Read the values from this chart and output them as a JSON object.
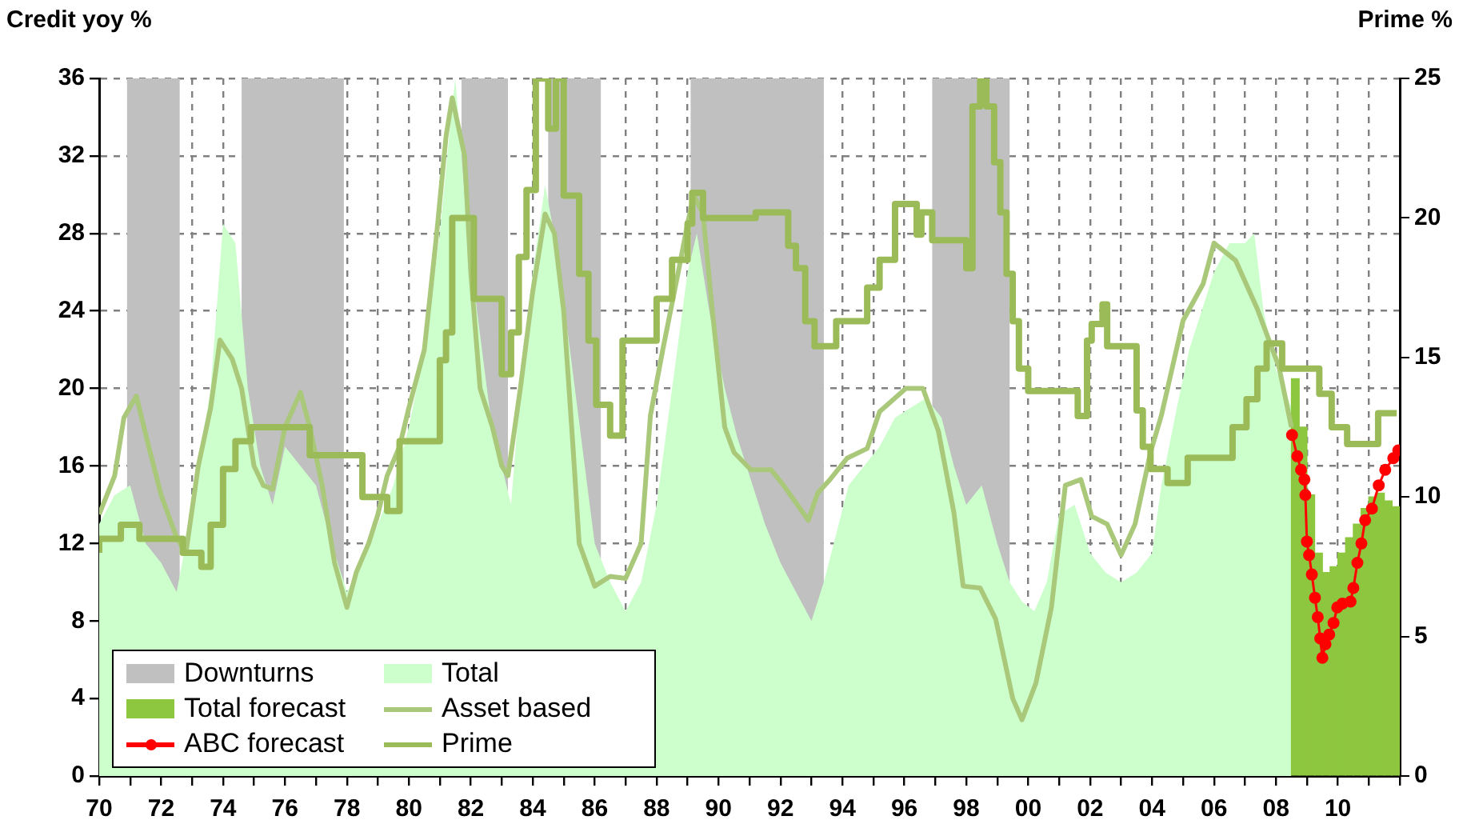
{
  "chart_data": {
    "type": "area",
    "ylabel": "Credit yoy %",
    "y2label": "Prime %",
    "xlim": [
      1970,
      2012
    ],
    "xticks": [
      {
        "value": 1970,
        "label": "70"
      },
      {
        "value": 1971,
        "label": null
      },
      {
        "value": 1972,
        "label": "72"
      },
      {
        "value": 1973,
        "label": null
      },
      {
        "value": 1974,
        "label": "74"
      },
      {
        "value": 1975,
        "label": null
      },
      {
        "value": 1976,
        "label": "76"
      },
      {
        "value": 1977,
        "label": null
      },
      {
        "value": 1978,
        "label": "78"
      },
      {
        "value": 1979,
        "label": null
      },
      {
        "value": 1980,
        "label": "80"
      },
      {
        "value": 1981,
        "label": null
      },
      {
        "value": 1982,
        "label": "82"
      },
      {
        "value": 1983,
        "label": null
      },
      {
        "value": 1984,
        "label": "84"
      },
      {
        "value": 1985,
        "label": null
      },
      {
        "value": 1986,
        "label": "86"
      },
      {
        "value": 1987,
        "label": null
      },
      {
        "value": 1988,
        "label": "88"
      },
      {
        "value": 1989,
        "label": null
      },
      {
        "value": 1990,
        "label": "90"
      },
      {
        "value": 1991,
        "label": null
      },
      {
        "value": 1992,
        "label": "92"
      },
      {
        "value": 1993,
        "label": null
      },
      {
        "value": 1994,
        "label": "94"
      },
      {
        "value": 1995,
        "label": null
      },
      {
        "value": 1996,
        "label": "96"
      },
      {
        "value": 1997,
        "label": null
      },
      {
        "value": 1998,
        "label": "98"
      },
      {
        "value": 1999,
        "label": null
      },
      {
        "value": 2000,
        "label": "00"
      },
      {
        "value": 2001,
        "label": null
      },
      {
        "value": 2002,
        "label": "02"
      },
      {
        "value": 2003,
        "label": null
      },
      {
        "value": 2004,
        "label": "04"
      },
      {
        "value": 2005,
        "label": null
      },
      {
        "value": 2006,
        "label": "06"
      },
      {
        "value": 2007,
        "label": null
      },
      {
        "value": 2008,
        "label": "08"
      },
      {
        "value": 2009,
        "label": null
      },
      {
        "value": 2010,
        "label": "10"
      },
      {
        "value": 2011,
        "label": null
      },
      {
        "value": 2012,
        "label": null
      }
    ],
    "ylim": [
      0,
      36
    ],
    "yticks": [
      0,
      4,
      8,
      12,
      16,
      20,
      24,
      28,
      32,
      36
    ],
    "y2lim": [
      0,
      25
    ],
    "y2ticks": [
      0,
      5,
      10,
      15,
      20,
      25
    ],
    "grid": true,
    "legend": "bottom left",
    "bands": [
      {
        "axis": "x",
        "from": 1970.9,
        "to": 1972.6,
        "label": "Downturns",
        "color": "#c0c0c0"
      },
      {
        "axis": "x",
        "from": 1974.6,
        "to": 1977.9,
        "color": "#c0c0c0"
      },
      {
        "axis": "x",
        "from": 1981.7,
        "to": 1983.2,
        "color": "#c0c0c0"
      },
      {
        "axis": "x",
        "from": 1984.5,
        "to": 1986.2,
        "color": "#c0c0c0"
      },
      {
        "axis": "x",
        "from": 1989.1,
        "to": 1993.4,
        "color": "#c0c0c0"
      },
      {
        "axis": "x",
        "from": 1996.9,
        "to": 1999.4,
        "color": "#c0c0c0"
      }
    ],
    "series": [
      {
        "name": "Total",
        "color": "#ccffcc",
        "x": [
          1970,
          1970.5,
          1971,
          1971.5,
          1972,
          1972.5,
          1972.8,
          1973.2,
          1973.6,
          1974,
          1974.4,
          1974.8,
          1975.2,
          1975.6,
          1976,
          1976.5,
          1977,
          1977.5,
          1978,
          1978.5,
          1979,
          1979.5,
          1980,
          1980.5,
          1981,
          1981.3,
          1981.5,
          1981.8,
          1982.2,
          1982.6,
          1983,
          1983.3,
          1983.6,
          1984,
          1984.4,
          1984.8,
          1985.2,
          1985.6,
          1986,
          1986.5,
          1987,
          1987.5,
          1988,
          1988.5,
          1989,
          1989.3,
          1989.7,
          1990.2,
          1990.6,
          1991,
          1991.5,
          1992,
          1992.5,
          1993,
          1993.4,
          1993.8,
          1994.2,
          1994.7,
          1995.2,
          1995.7,
          1996.2,
          1996.7,
          1997.2,
          1997.6,
          1998,
          1998.5,
          1999,
          1999.4,
          1999.8,
          2000.2,
          2000.6,
          2001,
          2001.5,
          2002,
          2002.5,
          2003,
          2003.5,
          2004,
          2004.3,
          2004.8,
          2005.2,
          2005.6,
          2006,
          2006.5,
          2007,
          2007.3,
          2007.6,
          2008,
          2008.5
        ],
        "values": [
          13,
          14.5,
          15,
          12,
          11,
          9.5,
          12,
          16,
          20,
          28.5,
          27.5,
          20,
          16,
          14,
          17,
          16,
          15,
          12,
          9.5,
          11,
          13,
          15,
          18,
          22,
          28,
          33,
          36,
          30,
          24,
          19,
          16,
          14,
          20,
          26,
          30.5,
          27,
          22,
          17,
          12,
          10,
          8.5,
          10,
          14,
          20,
          26,
          28,
          24,
          20,
          17.5,
          15.5,
          13,
          11,
          9.5,
          8,
          10,
          12.5,
          15,
          16,
          17,
          18.5,
          19,
          19.5,
          18.5,
          16,
          14,
          15,
          12,
          10,
          9,
          8.5,
          10,
          13.5,
          14,
          11.5,
          10.5,
          10,
          10.5,
          11.5,
          15,
          19,
          22,
          24,
          26,
          27.5,
          27.5,
          28,
          24,
          21,
          19
        ]
      },
      {
        "name": "Total forecast",
        "type": "bar",
        "color": "#8dc63f",
        "x": [
          2008.625,
          2008.875,
          2009.125,
          2009.375,
          2009.625,
          2009.875,
          2010.125,
          2010.375,
          2010.625,
          2010.875,
          2011.125,
          2011.375,
          2011.625,
          2011.875
        ],
        "values": [
          20.5,
          18,
          14.5,
          11.5,
          10.5,
          10.8,
          11.5,
          12.3,
          13,
          13.8,
          14.4,
          14.6,
          14.2,
          13.9
        ]
      },
      {
        "name": "Asset based",
        "type": "line",
        "color": "#aac87a",
        "x": [
          1970,
          1970.5,
          1970.8,
          1971.2,
          1971.6,
          1972,
          1972.5,
          1972.8,
          1973.2,
          1973.6,
          1973.9,
          1974.3,
          1974.6,
          1975,
          1975.3,
          1975.6,
          1976,
          1976.5,
          1976.8,
          1977.2,
          1977.6,
          1978,
          1978.3,
          1978.7,
          1979,
          1979.3,
          1979.7,
          1980,
          1980.5,
          1980.9,
          1981.2,
          1981.4,
          1981.8,
          1982,
          1982.3,
          1982.7,
          1983,
          1983.2,
          1983.6,
          1984,
          1984.4,
          1984.7,
          1985,
          1985.3,
          1985.5,
          1986,
          1986.5,
          1987,
          1987.5,
          1987.8,
          1988.2,
          1988.7,
          1989,
          1989.2,
          1989.5,
          1989.8,
          1990.2,
          1990.5,
          1991.05,
          1991.7,
          1992.1,
          1992.9,
          1993.2,
          1993.6,
          1994.15,
          1994.8,
          1995.2,
          1996.05,
          1996.6,
          1997.1,
          1997.6,
          1997.9,
          1998.45,
          1998.95,
          1999.5,
          1999.8,
          2000.25,
          2000.75,
          2001.2,
          2001.7,
          2002.05,
          2002.55,
          2003,
          2003.45,
          2003.95,
          2004.3,
          2005,
          2005.65,
          2006,
          2006.7,
          2007.4,
          2008.1,
          2008.5
        ],
        "values": [
          13.5,
          15.5,
          18.5,
          19.6,
          17,
          14.5,
          12.3,
          11.5,
          16,
          19,
          22.5,
          21.5,
          20,
          16,
          15,
          14.8,
          18,
          19.8,
          18,
          15,
          11,
          8.7,
          10.5,
          12,
          13.5,
          15.5,
          17,
          19,
          22,
          28,
          33,
          35,
          32,
          26,
          20,
          18,
          16,
          15.5,
          20,
          25,
          29,
          28,
          24,
          17,
          12,
          9.8,
          10.3,
          10.2,
          12,
          18.6,
          22,
          26,
          28.5,
          30,
          29,
          24,
          18,
          16.7,
          15.8,
          15.8,
          15,
          13.2,
          14.6,
          15.3,
          16.4,
          16.9,
          18.8,
          20,
          20,
          17.8,
          13.6,
          9.8,
          9.7,
          8.1,
          4,
          2.9,
          4.8,
          8.7,
          15,
          15.3,
          13.4,
          13,
          11.4,
          13,
          16.7,
          18.6,
          23.5,
          25.4,
          27.5,
          26.6,
          24.1,
          21.1,
          18
        ]
      },
      {
        "name": "ABC forecast",
        "type": "line",
        "color": "#ff0000",
        "marker": "circle",
        "x": [
          2008.52,
          2008.69,
          2008.81,
          2008.92,
          2008.95,
          2009,
          2009.07,
          2009.16,
          2009.26,
          2009.35,
          2009.43,
          2009.5,
          2009.6,
          2009.72,
          2009.86,
          2009.98,
          2010.15,
          2010.41,
          2010.5,
          2010.63,
          2010.76,
          2010.88,
          2011.1,
          2011.32,
          2011.53,
          2011.79,
          2011.95
        ],
        "values": [
          17.6,
          16.5,
          15.8,
          15.3,
          14.5,
          12.1,
          11.4,
          10.4,
          9.2,
          8.2,
          7.1,
          6.1,
          6.8,
          7.3,
          7.9,
          8.7,
          8.9,
          9,
          9.7,
          11,
          12,
          13.2,
          13.8,
          15,
          15.8,
          16.4,
          16.8
        ]
      },
      {
        "name": "Prime",
        "type": "step",
        "axis": "y2",
        "color": "#9bbb59",
        "x": [
          1970,
          1970.7,
          1971.3,
          1972.7,
          1973.3,
          1973.6,
          1974,
          1974.4,
          1974.9,
          1976.8,
          1978.5,
          1979.3,
          1979.7,
          1981,
          1981.2,
          1981.4,
          1982.1,
          1983,
          1983.3,
          1983.55,
          1983.8,
          1984.1,
          1984.5,
          1984.75,
          1985,
          1985.5,
          1985.8,
          1986.05,
          1986.5,
          1986.9,
          1988,
          1988.5,
          1989,
          1989.15,
          1989.5,
          1991.2,
          1992.25,
          1992.5,
          1992.8,
          1993.1,
          1993.8,
          1994.8,
          1995.2,
          1995.7,
          1996.4,
          1996.55,
          1996.9,
          1998,
          1998.2,
          1998.45,
          1998.65,
          1998.9,
          1999.1,
          1999.3,
          1999.5,
          1999.7,
          2000,
          2001.6,
          2001.9,
          2002.05,
          2002.4,
          2002.55,
          2003.5,
          2003.7,
          2003.95,
          2004.5,
          2005.15,
          2006.6,
          2007.05,
          2007.4,
          2007.7,
          2008.2,
          2009.4,
          2009.8,
          2010.3,
          2011.3,
          2011.9
        ],
        "values": [
          8,
          8.5,
          9,
          8.5,
          8,
          7.5,
          9,
          11,
          12,
          12.5,
          11.5,
          10,
          9.5,
          12,
          14.9,
          15.9,
          20,
          17.1,
          14.4,
          15.9,
          18.6,
          21,
          25,
          23.2,
          25,
          20.8,
          18,
          15.6,
          13.3,
          12.2,
          15.6,
          17.1,
          18.5,
          19.8,
          20.9,
          20,
          20.2,
          19,
          18.2,
          16.3,
          15.4,
          16.3,
          17.5,
          18.5,
          20.5,
          19.4,
          20.2,
          19.2,
          18.2,
          24,
          25,
          24,
          22,
          20.2,
          18,
          16.3,
          14.6,
          13.8,
          12.9,
          15.6,
          16.2,
          16.9,
          15.4,
          13.1,
          11.8,
          11,
          10.5,
          11.4,
          12.5,
          13.5,
          14.6,
          15.5,
          14.6,
          13.7,
          12.5,
          11.9,
          13
        ]
      }
    ]
  }
}
